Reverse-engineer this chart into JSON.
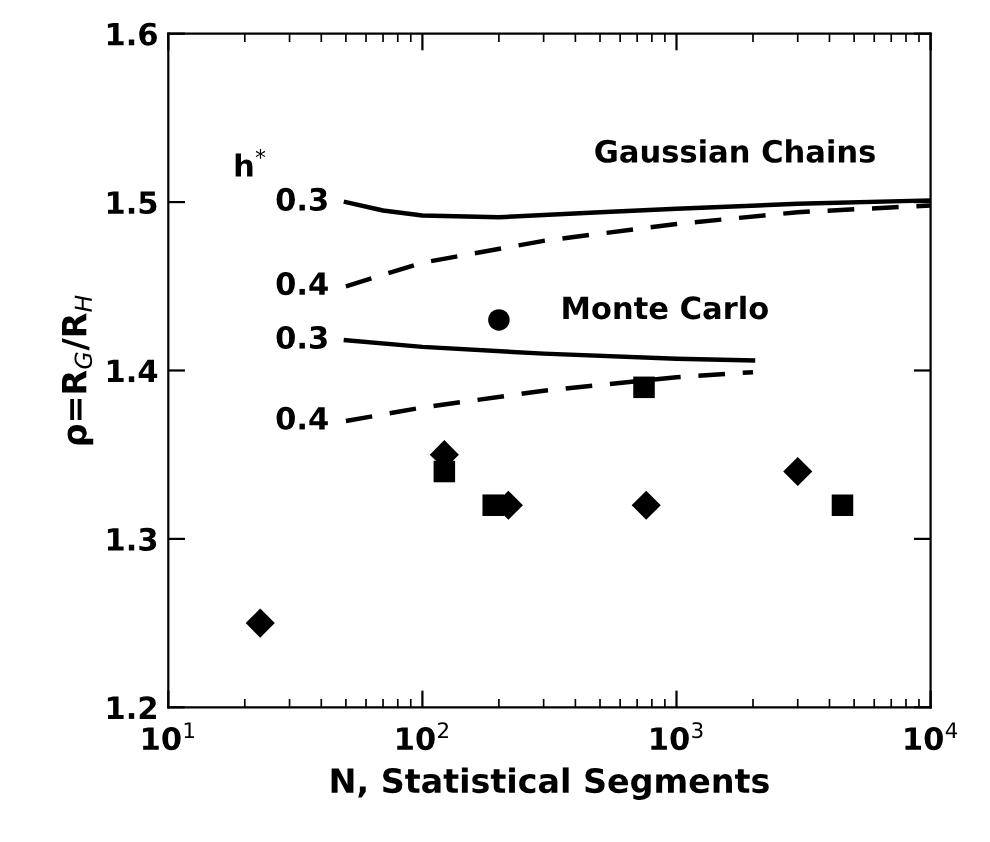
{
  "chart_data": {
    "type": "scatter",
    "xlabel": "N, Statistical Segments",
    "ylabel": "ρ=R$_{G}$/R$_{H}$",
    "log": "x",
    "xlim": [
      10,
      10000
    ],
    "xticks": [
      {
        "value": 10,
        "label": "10$^{1}$"
      },
      {
        "value": 100,
        "label": "10$^{2}$"
      },
      {
        "value": 1000,
        "label": "10$^{3}$"
      },
      {
        "value": 10000,
        "label": "10$^{4}$"
      }
    ],
    "ylim": [
      1.2,
      1.6
    ],
    "yticks": [
      1.2,
      1.3,
      1.4,
      1.5,
      1.6
    ],
    "grid": false,
    "series": [
      {
        "type": "line",
        "color": "#000000",
        "line_style": "solid",
        "marker": "none",
        "x": [
          50,
          70,
          100,
          200,
          500,
          1000,
          3000,
          10000
        ],
        "values": [
          1.5,
          1.495,
          1.492,
          1.491,
          1.494,
          1.496,
          1.499,
          1.501
        ]
      },
      {
        "type": "line",
        "color": "#000000",
        "line_style": "dashed",
        "marker": "none",
        "x": [
          50,
          100,
          300,
          1000,
          3000,
          10000
        ],
        "values": [
          1.45,
          1.464,
          1.477,
          1.487,
          1.494,
          1.498
        ]
      },
      {
        "type": "line",
        "color": "#000000",
        "line_style": "solid",
        "marker": "none",
        "x": [
          50,
          100,
          300,
          1000,
          2000
        ],
        "values": [
          1.418,
          1.414,
          1.41,
          1.407,
          1.406
        ]
      },
      {
        "type": "line",
        "color": "#000000",
        "line_style": "dashed",
        "marker": "none",
        "x": [
          50,
          100,
          300,
          1000,
          2000
        ],
        "values": [
          1.37,
          1.378,
          1.388,
          1.396,
          1.399
        ]
      },
      {
        "color": "#000000",
        "marker": "diamond",
        "x": [
          23,
          122,
          218,
          760,
          3000
        ],
        "values": [
          1.25,
          1.35,
          1.32,
          1.32,
          1.34
        ]
      },
      {
        "color": "#000000",
        "marker": "square",
        "x": [
          122,
          190,
          745,
          4500
        ],
        "values": [
          1.34,
          1.32,
          1.39,
          1.32
        ]
      },
      {
        "color": "#000000",
        "marker": "circle",
        "x": [
          200
        ],
        "values": [
          1.43
        ]
      }
    ],
    "annotations": [
      "h$^{*}$",
      {
        "text": "0.3",
        "x": 50,
        "y": 1.5
      },
      {
        "text": "0.4",
        "x": 50,
        "y": 1.45
      },
      {
        "text": "0.3",
        "x": 50,
        "y": 1.418
      },
      {
        "text": "0.4",
        "x": 50,
        "y": 1.37
      },
      {
        "text": "Gaussian Chains",
        "x": 1700,
        "y": 1.5
      },
      {
        "text": "Monte Carlo",
        "x": 900,
        "y": 1.407
      }
    ]
  }
}
